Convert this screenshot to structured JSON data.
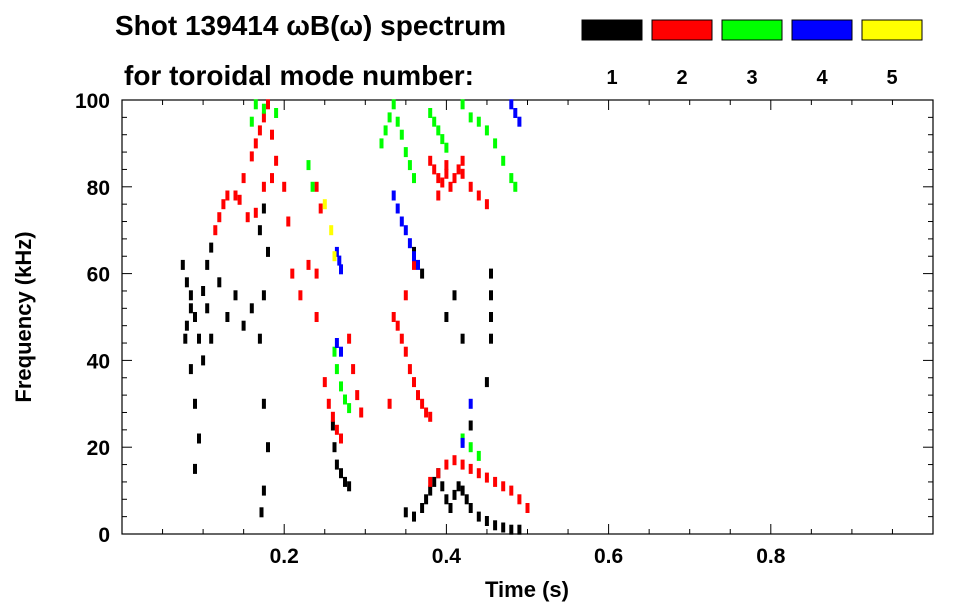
{
  "chart_data": {
    "type": "heatmap",
    "title_line1": "Shot 139414 ωB(ω) spectrum",
    "title_line2": "for toroidal mode number:",
    "xlabel": "Time (s)",
    "ylabel": "Frequency (kHz)",
    "xlim": [
      0.0,
      1.0
    ],
    "ylim": [
      0,
      100
    ],
    "x_ticks": [
      0.2,
      0.4,
      0.6,
      0.8
    ],
    "x_tick_labels": [
      "0.2",
      "0.4",
      "0.6",
      "0.8"
    ],
    "y_ticks": [
      0,
      20,
      40,
      60,
      80,
      100
    ],
    "y_tick_labels": [
      "0",
      "20",
      "40",
      "60",
      "80",
      "100"
    ],
    "legend": [
      {
        "label": "1",
        "color": "#000000"
      },
      {
        "label": "2",
        "color": "#ff0000"
      },
      {
        "label": "3",
        "color": "#00ff00"
      },
      {
        "label": "4",
        "color": "#0000ff"
      },
      {
        "label": "5",
        "color": "#ffff00"
      }
    ],
    "legend_placement": "top-right",
    "grid": false,
    "series": [
      {
        "name": "1",
        "color": "#000000",
        "points": [
          [
            0.075,
            62
          ],
          [
            0.08,
            58
          ],
          [
            0.085,
            55
          ],
          [
            0.09,
            50
          ],
          [
            0.095,
            45
          ],
          [
            0.1,
            40
          ],
          [
            0.08,
            48
          ],
          [
            0.085,
            38
          ],
          [
            0.09,
            30
          ],
          [
            0.095,
            22
          ],
          [
            0.09,
            15
          ],
          [
            0.085,
            52
          ],
          [
            0.078,
            45
          ],
          [
            0.1,
            56
          ],
          [
            0.105,
            62
          ],
          [
            0.11,
            66
          ],
          [
            0.105,
            52
          ],
          [
            0.11,
            45
          ],
          [
            0.12,
            58
          ],
          [
            0.13,
            50
          ],
          [
            0.14,
            55
          ],
          [
            0.15,
            48
          ],
          [
            0.16,
            52
          ],
          [
            0.17,
            70
          ],
          [
            0.175,
            75
          ],
          [
            0.18,
            65
          ],
          [
            0.175,
            55
          ],
          [
            0.17,
            45
          ],
          [
            0.175,
            30
          ],
          [
            0.18,
            20
          ],
          [
            0.175,
            10
          ],
          [
            0.172,
            5
          ],
          [
            0.26,
            25
          ],
          [
            0.262,
            20
          ],
          [
            0.265,
            16
          ],
          [
            0.27,
            14
          ],
          [
            0.275,
            12
          ],
          [
            0.28,
            11
          ],
          [
            0.35,
            5
          ],
          [
            0.36,
            4
          ],
          [
            0.37,
            6
          ],
          [
            0.375,
            8
          ],
          [
            0.38,
            10
          ],
          [
            0.385,
            12
          ],
          [
            0.39,
            14
          ],
          [
            0.395,
            11
          ],
          [
            0.4,
            8
          ],
          [
            0.405,
            6
          ],
          [
            0.41,
            9
          ],
          [
            0.415,
            11
          ],
          [
            0.42,
            10
          ],
          [
            0.425,
            8
          ],
          [
            0.43,
            6
          ],
          [
            0.44,
            4
          ],
          [
            0.45,
            3
          ],
          [
            0.46,
            2
          ],
          [
            0.47,
            1.5
          ],
          [
            0.48,
            1
          ],
          [
            0.49,
            1
          ],
          [
            0.455,
            60
          ],
          [
            0.455,
            55
          ],
          [
            0.455,
            50
          ],
          [
            0.455,
            45
          ],
          [
            0.45,
            35
          ],
          [
            0.43,
            25
          ],
          [
            0.4,
            50
          ],
          [
            0.41,
            55
          ],
          [
            0.42,
            45
          ],
          [
            0.36,
            65
          ],
          [
            0.37,
            60
          ]
        ]
      },
      {
        "name": "2",
        "color": "#ff0000",
        "points": [
          [
            0.115,
            70
          ],
          [
            0.125,
            76
          ],
          [
            0.14,
            78
          ],
          [
            0.15,
            82
          ],
          [
            0.16,
            87
          ],
          [
            0.165,
            90
          ],
          [
            0.17,
            93
          ],
          [
            0.175,
            96
          ],
          [
            0.18,
            99
          ],
          [
            0.185,
            92
          ],
          [
            0.19,
            86
          ],
          [
            0.185,
            82
          ],
          [
            0.175,
            80
          ],
          [
            0.165,
            74
          ],
          [
            0.155,
            73
          ],
          [
            0.145,
            77
          ],
          [
            0.13,
            78
          ],
          [
            0.12,
            73
          ],
          [
            0.2,
            80
          ],
          [
            0.205,
            72
          ],
          [
            0.21,
            60
          ],
          [
            0.22,
            55
          ],
          [
            0.23,
            62
          ],
          [
            0.24,
            80
          ],
          [
            0.245,
            75
          ],
          [
            0.24,
            60
          ],
          [
            0.24,
            50
          ],
          [
            0.25,
            35
          ],
          [
            0.255,
            30
          ],
          [
            0.26,
            27
          ],
          [
            0.265,
            24
          ],
          [
            0.27,
            22
          ],
          [
            0.28,
            45
          ],
          [
            0.285,
            38
          ],
          [
            0.29,
            32
          ],
          [
            0.295,
            28
          ],
          [
            0.33,
            30
          ],
          [
            0.335,
            50
          ],
          [
            0.34,
            48
          ],
          [
            0.345,
            45
          ],
          [
            0.35,
            42
          ],
          [
            0.355,
            38
          ],
          [
            0.36,
            35
          ],
          [
            0.365,
            32
          ],
          [
            0.37,
            30
          ],
          [
            0.375,
            28
          ],
          [
            0.38,
            27
          ],
          [
            0.35,
            55
          ],
          [
            0.36,
            62
          ],
          [
            0.38,
            86
          ],
          [
            0.385,
            84
          ],
          [
            0.39,
            82
          ],
          [
            0.395,
            81
          ],
          [
            0.4,
            83
          ],
          [
            0.405,
            80
          ],
          [
            0.41,
            82
          ],
          [
            0.415,
            84
          ],
          [
            0.42,
            83
          ],
          [
            0.43,
            80
          ],
          [
            0.44,
            78
          ],
          [
            0.45,
            76
          ],
          [
            0.39,
            78
          ],
          [
            0.4,
            85
          ],
          [
            0.42,
            86
          ],
          [
            0.38,
            12
          ],
          [
            0.39,
            14
          ],
          [
            0.4,
            16
          ],
          [
            0.41,
            17
          ],
          [
            0.42,
            16
          ],
          [
            0.43,
            15
          ],
          [
            0.44,
            14
          ],
          [
            0.45,
            13
          ],
          [
            0.46,
            12
          ],
          [
            0.47,
            11
          ],
          [
            0.48,
            10
          ],
          [
            0.49,
            8
          ],
          [
            0.5,
            6
          ]
        ]
      },
      {
        "name": "3",
        "color": "#00ff00",
        "points": [
          [
            0.16,
            95
          ],
          [
            0.165,
            99
          ],
          [
            0.175,
            98
          ],
          [
            0.19,
            97
          ],
          [
            0.23,
            85
          ],
          [
            0.235,
            80
          ],
          [
            0.265,
            38
          ],
          [
            0.27,
            34
          ],
          [
            0.275,
            31
          ],
          [
            0.28,
            29
          ],
          [
            0.262,
            42
          ],
          [
            0.32,
            90
          ],
          [
            0.325,
            93
          ],
          [
            0.33,
            96
          ],
          [
            0.335,
            99
          ],
          [
            0.34,
            95
          ],
          [
            0.345,
            92
          ],
          [
            0.35,
            88
          ],
          [
            0.355,
            85
          ],
          [
            0.36,
            82
          ],
          [
            0.38,
            97
          ],
          [
            0.385,
            95
          ],
          [
            0.39,
            93
          ],
          [
            0.395,
            91
          ],
          [
            0.4,
            89
          ],
          [
            0.43,
            96
          ],
          [
            0.44,
            95
          ],
          [
            0.45,
            93
          ],
          [
            0.46,
            90
          ],
          [
            0.47,
            86
          ],
          [
            0.48,
            82
          ],
          [
            0.485,
            80
          ],
          [
            0.42,
            99
          ],
          [
            0.42,
            22
          ],
          [
            0.43,
            20
          ],
          [
            0.44,
            18
          ]
        ]
      },
      {
        "name": "4",
        "color": "#0000ff",
        "points": [
          [
            0.335,
            78
          ],
          [
            0.34,
            75
          ],
          [
            0.345,
            72
          ],
          [
            0.35,
            70
          ],
          [
            0.355,
            67
          ],
          [
            0.36,
            64
          ],
          [
            0.365,
            62
          ],
          [
            0.265,
            65
          ],
          [
            0.268,
            63
          ],
          [
            0.27,
            61
          ],
          [
            0.265,
            44
          ],
          [
            0.27,
            42
          ],
          [
            0.48,
            99
          ],
          [
            0.485,
            97
          ],
          [
            0.49,
            95
          ],
          [
            0.42,
            21
          ],
          [
            0.43,
            30
          ]
        ]
      },
      {
        "name": "5",
        "color": "#ffff00",
        "points": [
          [
            0.25,
            76
          ],
          [
            0.258,
            70
          ],
          [
            0.262,
            64
          ]
        ]
      }
    ]
  }
}
